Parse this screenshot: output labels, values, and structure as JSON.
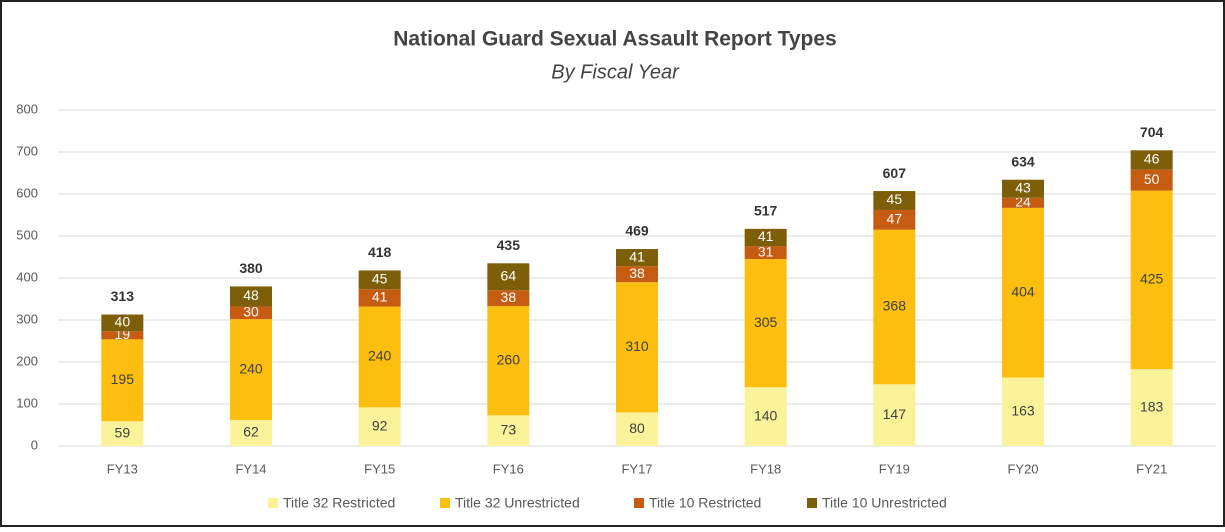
{
  "chart_data": {
    "type": "stacked_bar",
    "title": "National Guard Sexual Assault Report Types",
    "subtitle": "By Fiscal Year",
    "categories": [
      "FY13",
      "FY14",
      "FY15",
      "FY16",
      "FY17",
      "FY18",
      "FY19",
      "FY20",
      "FY21"
    ],
    "series": [
      {
        "name": "Title 32 Restricted",
        "color": "#fbf399",
        "values": [
          59,
          62,
          92,
          73,
          80,
          140,
          147,
          163,
          183
        ]
      },
      {
        "name": "Title 32 Unrestricted",
        "color": "#fdbf0f",
        "values": [
          195,
          240,
          240,
          260,
          310,
          305,
          368,
          404,
          425
        ]
      },
      {
        "name": "Title 10 Restricted",
        "color": "#c65b12",
        "values": [
          19,
          30,
          41,
          38,
          38,
          31,
          47,
          24,
          50
        ]
      },
      {
        "name": "Title 10 Unrestricted",
        "color": "#7d5f0a",
        "values": [
          40,
          48,
          45,
          64,
          41,
          41,
          45,
          43,
          46
        ]
      }
    ],
    "totals": [
      313,
      380,
      418,
      435,
      469,
      517,
      607,
      634,
      704
    ],
    "ylim": [
      0,
      800
    ],
    "yticks": [
      0,
      100,
      200,
      300,
      400,
      500,
      600,
      700,
      800
    ],
    "grid": true,
    "legend": "bottom"
  }
}
